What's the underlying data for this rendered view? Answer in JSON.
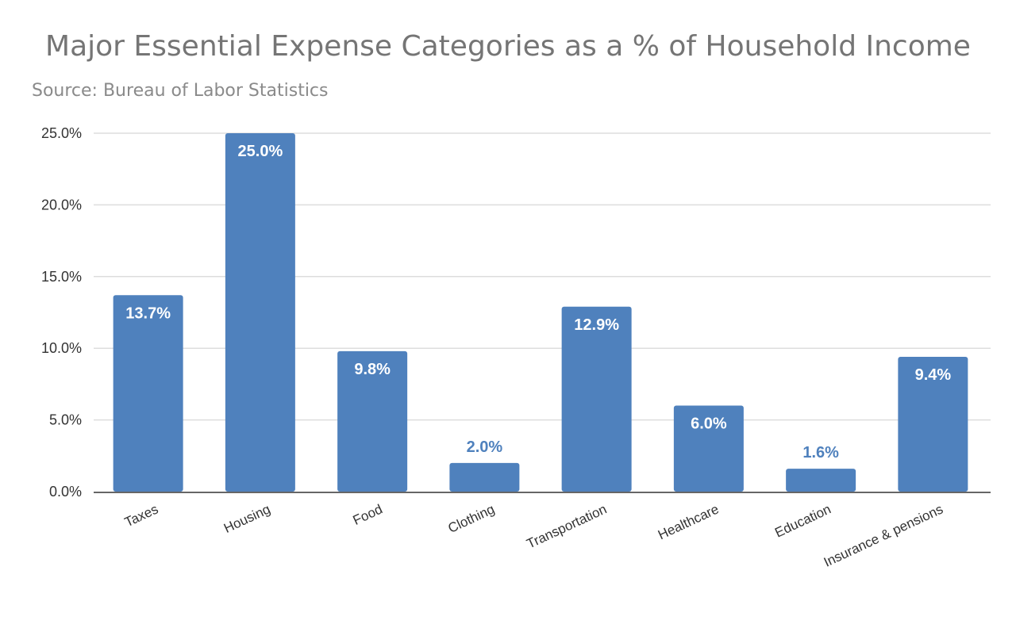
{
  "chart_data": {
    "type": "bar",
    "title": "Major Essential Expense Categories as a % of Household Income",
    "subtitle": "Source: Bureau of Labor Statistics",
    "categories": [
      "Taxes",
      "Housing",
      "Food",
      "Clothing",
      "Transportation",
      "Healthcare",
      "Education",
      "Insurance & pensions"
    ],
    "values": [
      13.7,
      25.0,
      9.8,
      2.0,
      12.9,
      6.0,
      1.6,
      9.4
    ],
    "data_labels": [
      "13.7%",
      "25.0%",
      "9.8%",
      "2.0%",
      "12.9%",
      "6.0%",
      "1.6%",
      "9.4%"
    ],
    "y_ticks": [
      0,
      5,
      10,
      15,
      20,
      25
    ],
    "y_tick_labels": [
      "0.0%",
      "5.0%",
      "10.0%",
      "15.0%",
      "20.0%",
      "25.0%"
    ],
    "ylim": [
      0,
      25
    ],
    "xlabel": "",
    "ylabel": "",
    "grid": true,
    "legend": "none",
    "colors": {
      "bar": "#4f81bd",
      "label_inside": "#ffffff",
      "label_outside": "#4f81bd",
      "grid": "#dddddd",
      "axis": "#333333",
      "title": "#757575",
      "subtitle": "#8a8a8a"
    }
  }
}
